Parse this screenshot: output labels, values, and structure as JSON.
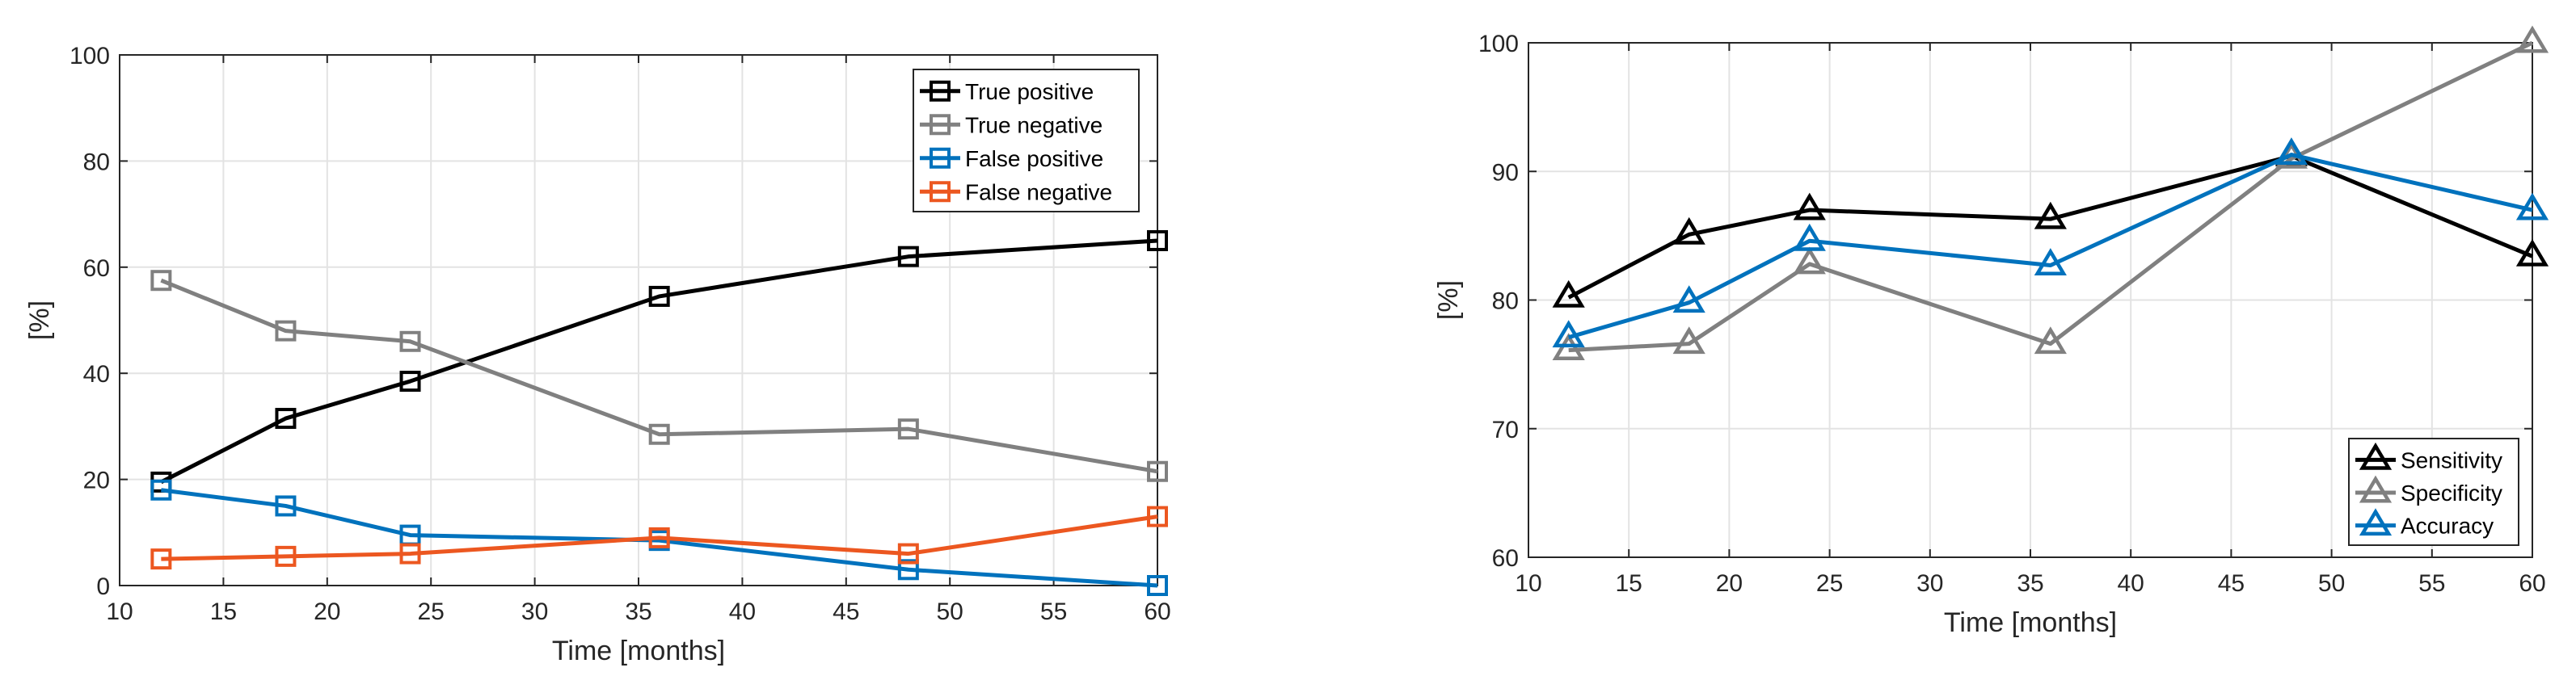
{
  "chart_data": [
    {
      "type": "line",
      "title": "",
      "xlabel": "Time [months]",
      "ylabel": "[%]",
      "xlim": [
        10,
        60
      ],
      "ylim": [
        0,
        100
      ],
      "xticks": [
        10,
        15,
        20,
        25,
        30,
        35,
        40,
        45,
        50,
        55,
        60
      ],
      "yticks": [
        0,
        20,
        40,
        60,
        80,
        100
      ],
      "grid": true,
      "legend_position": "top-right",
      "marker": "square",
      "x": [
        12,
        18,
        24,
        36,
        48,
        60
      ],
      "series": [
        {
          "name": "True positive",
          "color": "#000000",
          "values": [
            19.5,
            31.5,
            38.5,
            54.5,
            62,
            65
          ]
        },
        {
          "name": "True negative",
          "color": "#808080",
          "values": [
            57.5,
            48,
            46,
            28.5,
            29.5,
            21.5
          ]
        },
        {
          "name": "False positive",
          "color": "#0072bd",
          "values": [
            18,
            15,
            9.5,
            8.5,
            3,
            0
          ]
        },
        {
          "name": "False negative",
          "color": "#ec5720",
          "values": [
            5,
            5.5,
            6,
            9,
            6,
            13
          ]
        }
      ]
    },
    {
      "type": "line",
      "title": "",
      "xlabel": "Time [months]",
      "ylabel": "[%]",
      "xlim": [
        10,
        60
      ],
      "ylim": [
        60,
        100
      ],
      "xticks": [
        10,
        15,
        20,
        25,
        30,
        35,
        40,
        45,
        50,
        55,
        60
      ],
      "yticks": [
        60,
        70,
        80,
        90,
        100
      ],
      "grid": true,
      "legend_position": "bottom-right",
      "marker": "triangle",
      "x": [
        12,
        18,
        24,
        36,
        48,
        60
      ],
      "series": [
        {
          "name": "Sensitivity",
          "color": "#000000",
          "values": [
            80.2,
            85.1,
            87,
            86.3,
            91.2,
            83.4
          ]
        },
        {
          "name": "Specificity",
          "color": "#808080",
          "values": [
            76.1,
            76.6,
            82.8,
            76.6,
            91,
            100
          ]
        },
        {
          "name": "Accuracy",
          "color": "#0072bd",
          "values": [
            77.1,
            79.8,
            84.6,
            82.7,
            91.3,
            87
          ]
        }
      ]
    }
  ]
}
